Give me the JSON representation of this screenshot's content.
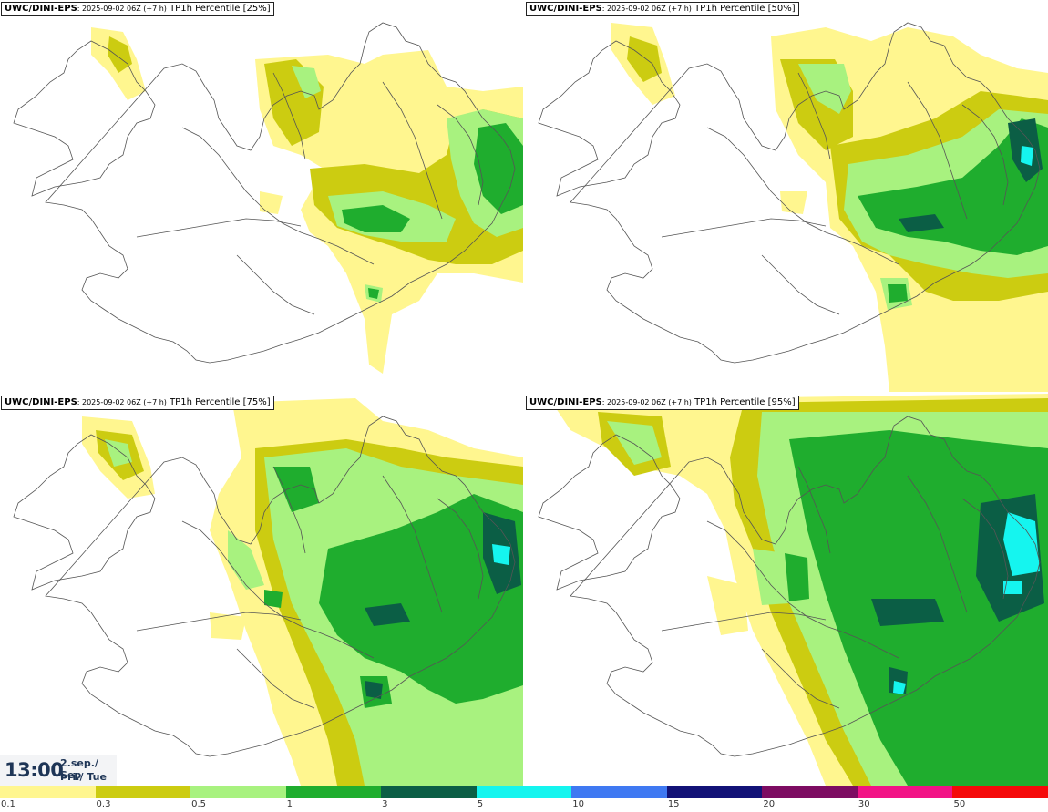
{
  "panels": [
    {
      "source": "UWC/DINI-EPS",
      "run": ": 2025-09-02 06Z (+7 h)",
      "param": " TP1h Percentile [25%]"
    },
    {
      "source": "UWC/DINI-EPS",
      "run": ": 2025-09-02 06Z (+7 h)",
      "param": " TP1h Percentile [50%]"
    },
    {
      "source": "UWC/DINI-EPS",
      "run": ": 2025-09-02 06Z (+7 h)",
      "param": " TP1h Percentile [75%]"
    },
    {
      "source": "UWC/DINI-EPS",
      "run": ": 2025-09-02 06Z (+7 h)",
      "param": " TP1h Percentile [95%]"
    }
  ],
  "time": {
    "clock": "13:00",
    "date": "2.sep./ Sep",
    "weekday": "Þri./ Tue"
  },
  "legend": {
    "colors": [
      "#fff68f",
      "#cccc11",
      "#a8f27f",
      "#1fad2e",
      "#0b5e45",
      "#15f5ef",
      "#3f79f2",
      "#121277",
      "#7d0c62",
      "#f21486",
      "#f50a0a"
    ],
    "labels": [
      "0.1",
      "0.3",
      "0.5",
      "1",
      "3",
      "5",
      "10",
      "15",
      "20",
      "30",
      "50"
    ]
  }
}
